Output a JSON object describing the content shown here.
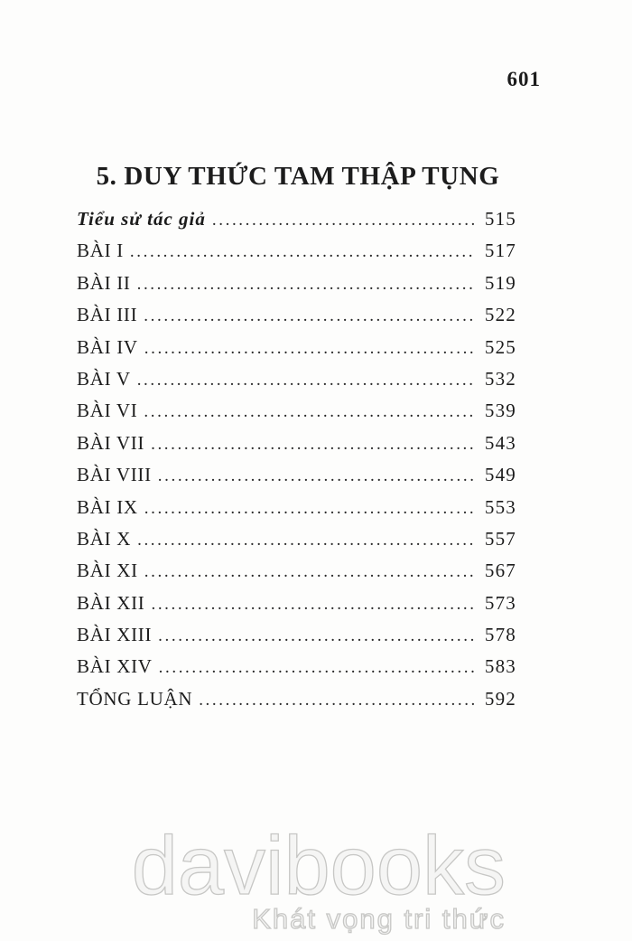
{
  "page": {
    "number": "601",
    "title": "5. DUY THỨC TAM THẬP TỤNG"
  },
  "toc": {
    "entries": [
      {
        "label": "Tiểu sử tác giả",
        "page": "515",
        "style": "script"
      },
      {
        "label": "BÀI I",
        "page": "517"
      },
      {
        "label": "BÀI II",
        "page": "519"
      },
      {
        "label": "BÀI III",
        "page": "522"
      },
      {
        "label": "BÀI IV",
        "page": "525"
      },
      {
        "label": "BÀI V",
        "page": "532"
      },
      {
        "label": "BÀI VI",
        "page": "539"
      },
      {
        "label": "BÀI VII",
        "page": "543"
      },
      {
        "label": "BÀI VIII",
        "page": "549"
      },
      {
        "label": "BÀI IX",
        "page": "553"
      },
      {
        "label": "BÀI X",
        "page": "557"
      },
      {
        "label": "BÀI XI",
        "page": "567"
      },
      {
        "label": "BÀI XII",
        "page": "573"
      },
      {
        "label": "BÀI XIII",
        "page": "578"
      },
      {
        "label": "BÀI XIV",
        "page": "583"
      },
      {
        "label": "TỔNG LUẬN",
        "page": "592"
      }
    ]
  },
  "watermark": {
    "brand": "davibooks",
    "tagline": "Khát vọng tri thức"
  }
}
